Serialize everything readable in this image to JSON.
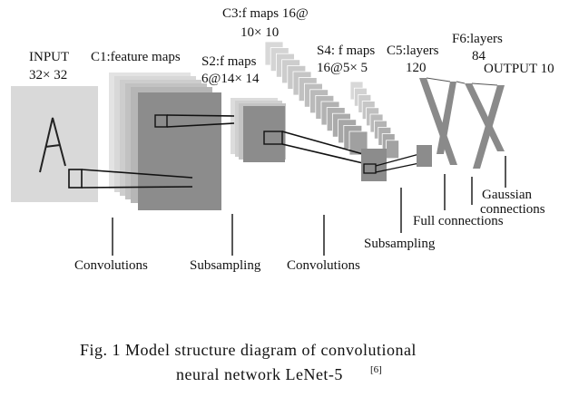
{
  "diagram": {
    "input_label": "INPUT",
    "input_size": "32× 32",
    "c1_label": "C1:feature  maps",
    "s2_label_1": "S2:f maps",
    "s2_label_2": "6@14× 14",
    "c3_label_1": "C3:f maps 16@",
    "c3_label_2": "10× 10",
    "s4_label_1": "S4: f maps",
    "s4_label_2": "16@5× 5",
    "c5_label_1": "C5:layers",
    "c5_label_2": "120",
    "f6_label_1": "F6:layers",
    "f6_label_2": "84",
    "output_label": "OUTPUT 10",
    "op_convolutions_1": "Convolutions",
    "op_subsampling_1": "Subsampling",
    "op_convolutions_2": "Convolutions",
    "op_subsampling_2": "Subsampling",
    "op_full": "Full connections",
    "op_gaussian_1": "Gaussian",
    "op_gaussian_2": "connections",
    "caption_line1": "Fig. 1    Model structure diagram of convolutional",
    "caption_line2": "neural network LeNet-5",
    "caption_ref": "[6]",
    "colors": {
      "input_bg": "#d9d9d9",
      "c1_dark": "#8c8c8c",
      "stack_light": "#cfcfcf",
      "fc_band": "#8a8a8a"
    }
  }
}
